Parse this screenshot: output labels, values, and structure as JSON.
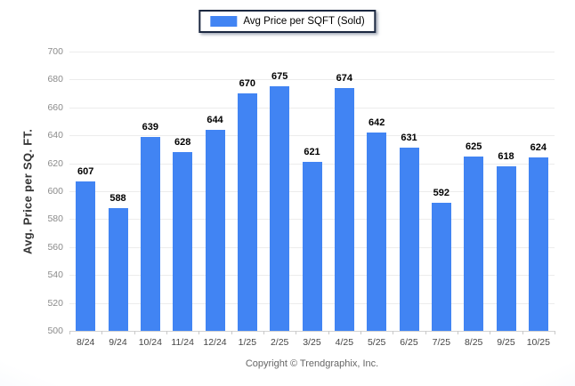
{
  "legend": {
    "label": "Avg Price per SQFT (Sold)",
    "swatch_color": "#4184f3"
  },
  "footer": {
    "text": "Copyright © Trendgraphix, Inc."
  },
  "chart_data": {
    "type": "bar",
    "title": "",
    "xlabel": "",
    "ylabel": "Avg. Price per SQ. FT.",
    "categories": [
      "8/24",
      "9/24",
      "10/24",
      "11/24",
      "12/24",
      "1/25",
      "2/25",
      "3/25",
      "4/25",
      "5/25",
      "6/25",
      "7/25",
      "8/25",
      "9/25",
      "10/25"
    ],
    "values": [
      607,
      588,
      639,
      628,
      644,
      670,
      675,
      621,
      674,
      642,
      631,
      592,
      625,
      618,
      624
    ],
    "series_name": "Avg Price per SQFT (Sold)",
    "ylim": [
      500,
      700
    ],
    "ytick_step": 20,
    "grid": true,
    "legend_position": "top-center",
    "colors": {
      "bar": "#4184f3",
      "value_label": "#000000",
      "gridline": "#ececec",
      "axis_tick_label": "#8b8b8b",
      "x_tick_label": "#454545"
    }
  }
}
